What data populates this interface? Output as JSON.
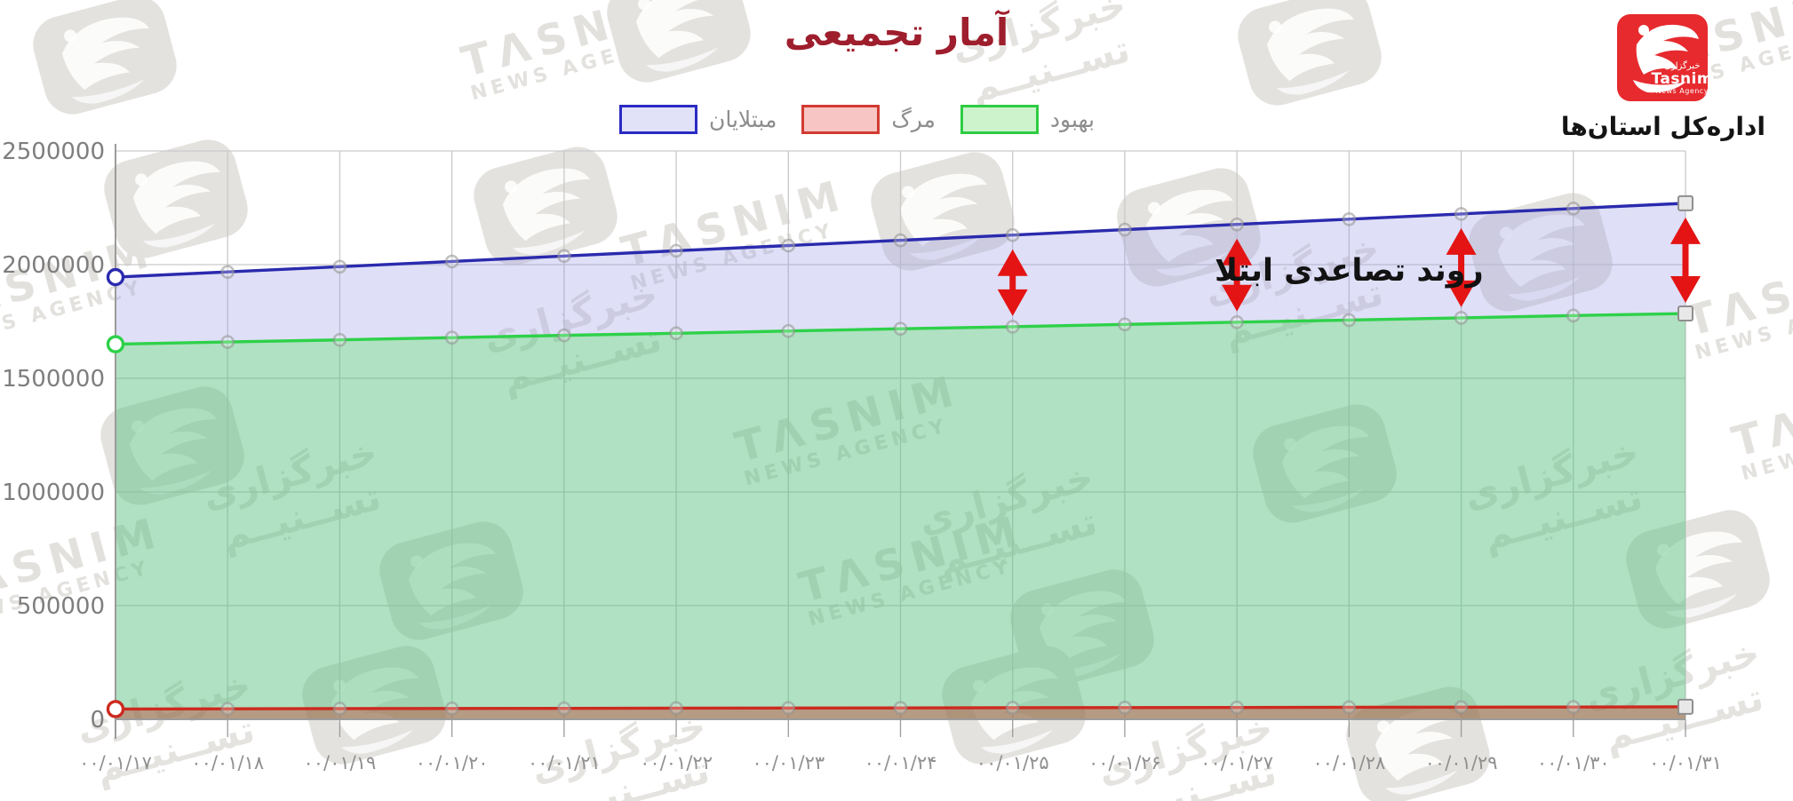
{
  "title": "آمار تجمیعی",
  "header": {
    "org_label": "اداره‌کل استان‌ها",
    "logo": {
      "farsi_small": "خبرگزاری",
      "name": "Tasnim",
      "sub": "News Agency",
      "color": "#e62a2e"
    }
  },
  "legend": [
    {
      "label": "مبتلایان",
      "border": "#2a2ac4",
      "fill": "#e1e1f8"
    },
    {
      "label": "مرگ",
      "border": "#d23a32",
      "fill": "#f7c6c4"
    },
    {
      "label": "بهبود",
      "border": "#2ecc43",
      "fill": "#cdf3cd"
    }
  ],
  "watermark": {
    "latin_line1": "TΛSNIM",
    "latin_line2": "NEWS AGENCY",
    "farsi_line1": "خبرگزاری",
    "farsi_line2": "تســنیــم"
  },
  "chart_data": {
    "type": "area",
    "title": "آمار تجمیعی",
    "categories": [
      "۰۰/۰۱/۱۷",
      "۰۰/۰۱/۱۸",
      "۰۰/۰۱/۱۹",
      "۰۰/۰۱/۲۰",
      "۰۰/۰۱/۲۱",
      "۰۰/۰۱/۲۲",
      "۰۰/۰۱/۲۳",
      "۰۰/۰۱/۲۴",
      "۰۰/۰۱/۲۵",
      "۰۰/۰۱/۲۶",
      "۰۰/۰۱/۲۷",
      "۰۰/۰۱/۲۸",
      "۰۰/۰۱/۲۹",
      "۰۰/۰۱/۳۰",
      "۰۰/۰۱/۳۱"
    ],
    "series": [
      {
        "name": "مبتلایان",
        "color": "#2a2aae",
        "fill": "rgba(150,150,228,0.30)",
        "values": [
          1945000,
          1968000,
          1991000,
          2014000,
          2038000,
          2061000,
          2084000,
          2107000,
          2130000,
          2154000,
          2177000,
          2200000,
          2223000,
          2247000,
          2270000
        ]
      },
      {
        "name": "بهبود",
        "color": "#2ed149",
        "fill": "rgba(88,192,128,0.48)",
        "values": [
          1650000,
          1660000,
          1669000,
          1679000,
          1689000,
          1698000,
          1708000,
          1718000,
          1727000,
          1737000,
          1747000,
          1756000,
          1766000,
          1776000,
          1785000
        ]
      },
      {
        "name": "مرگ",
        "color": "#cd2a1f",
        "fill": "rgba(190,60,45,0.42)",
        "values": [
          45000,
          46000,
          47000,
          47500,
          48000,
          49000,
          49500,
          50000,
          51000,
          51500,
          52000,
          53000,
          53500,
          54000,
          55000
        ]
      }
    ],
    "y_ticks": [
      0,
      500000,
      1000000,
      1500000,
      2000000,
      2500000
    ],
    "ylim": [
      0,
      2500000
    ],
    "grid": true,
    "legend_position": "top",
    "annotation": {
      "text": "روند تصاعدی ابتلا",
      "arrow_color": "#e41414",
      "arrow_indices": [
        8,
        10,
        12,
        14
      ],
      "arrow_dates": [
        "۰۰/۰۱/۲۵",
        "۰۰/۰۱/۲۷",
        "۰۰/۰۱/۲۹",
        "۰۰/۰۱/۳۱"
      ]
    }
  }
}
